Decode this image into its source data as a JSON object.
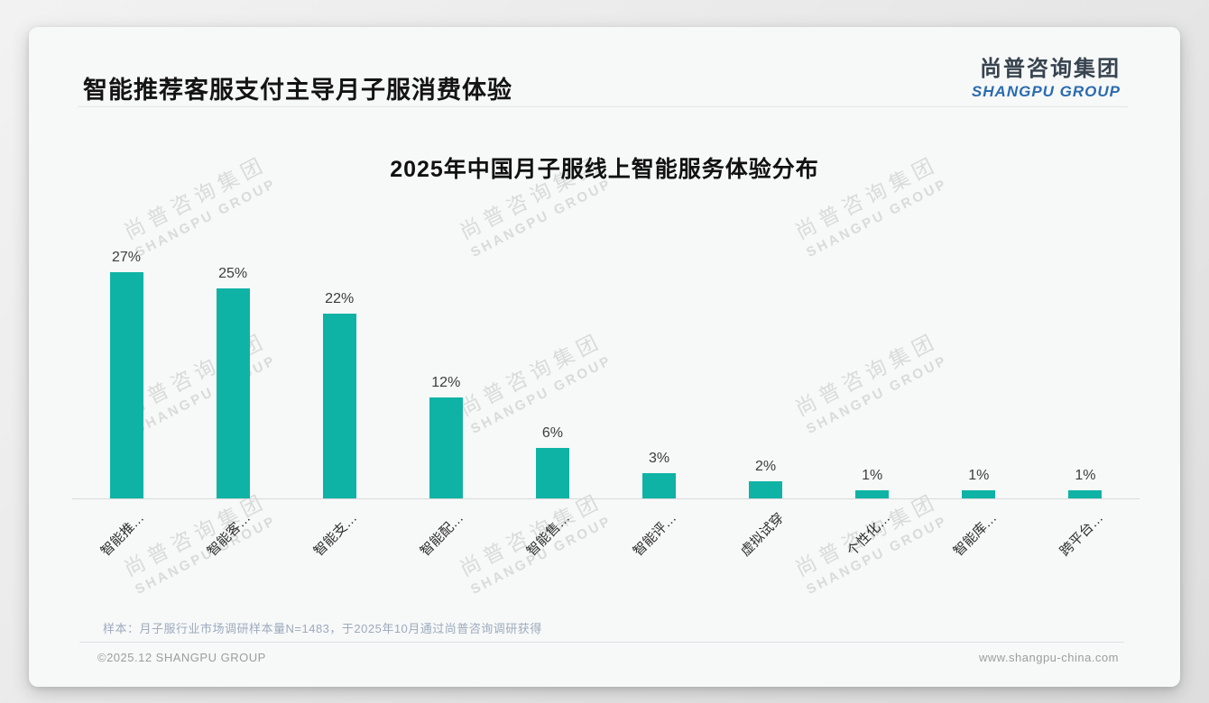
{
  "page": {
    "title": "智能推荐客服支付主导月子服消费体验",
    "logo": {
      "cn": "尚普咨询集团",
      "en": "SHANGPU GROUP"
    },
    "watermark": {
      "cn": "尚普咨询集团",
      "en": "SHANGPU GROUP"
    },
    "note": "样本：月子服行业市场调研样本量N=1483，于2025年10月通过尚普咨询调研获得",
    "footer_left": "©2025.12 SHANGPU GROUP",
    "footer_right": "www.shangpu-china.com"
  },
  "colors": {
    "bar": "#0fb3a5",
    "logo_blue": "#2a6bb0",
    "title_text": "#141414"
  },
  "chart_data": {
    "type": "bar",
    "title": "2025年中国月子服线上智能服务体验分布",
    "categories": [
      "智能推…",
      "智能客…",
      "智能支…",
      "智能配…",
      "智能售…",
      "智能评…",
      "虚拟试穿",
      "个性化…",
      "智能库…",
      "跨平台…"
    ],
    "values": [
      27,
      25,
      22,
      12,
      6,
      3,
      2,
      1,
      1,
      1
    ],
    "data_labels": [
      "27%",
      "25%",
      "22%",
      "12%",
      "6%",
      "3%",
      "2%",
      "1%",
      "1%",
      "1%"
    ],
    "unit": "%",
    "ylim": [
      0,
      30
    ],
    "grid": false,
    "legend_position": "none",
    "xlabel": "",
    "ylabel": ""
  }
}
